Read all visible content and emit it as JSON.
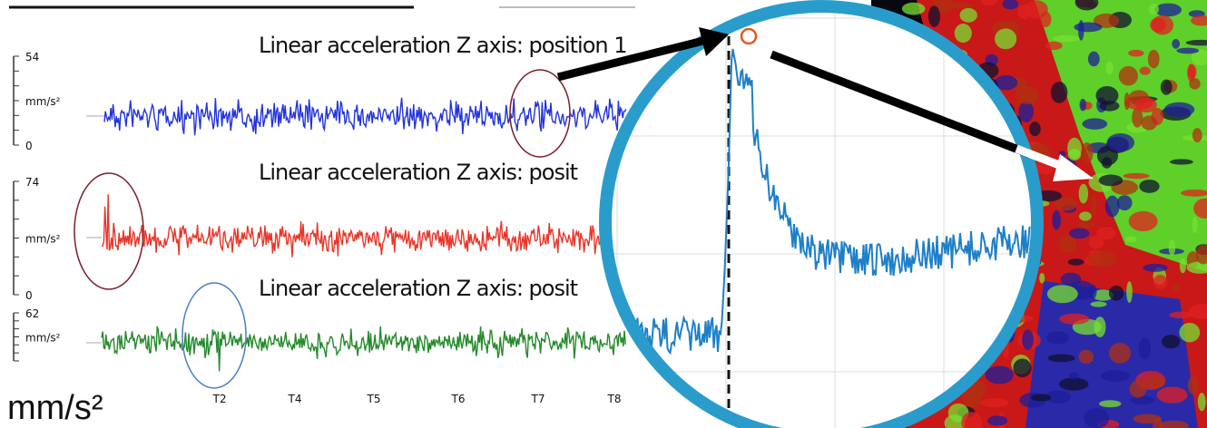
{
  "panels": [
    {
      "title": "Linear acceleration Z axis: position 1",
      "scale_max": 54,
      "unit": "mm/s²",
      "scale_min": 0
    },
    {
      "title": "Linear acceleration Z axis: posit",
      "scale_max": 74,
      "unit": "mm/s²",
      "scale_min": 0
    },
    {
      "title": "Linear acceleration Z axis: posit",
      "scale_max": 62,
      "unit": "mm/s²"
    }
  ],
  "time_labels": [
    "T2",
    "T4",
    "T5",
    "T6",
    "T7",
    "T8"
  ],
  "unit_label": "mm/s²"
}
